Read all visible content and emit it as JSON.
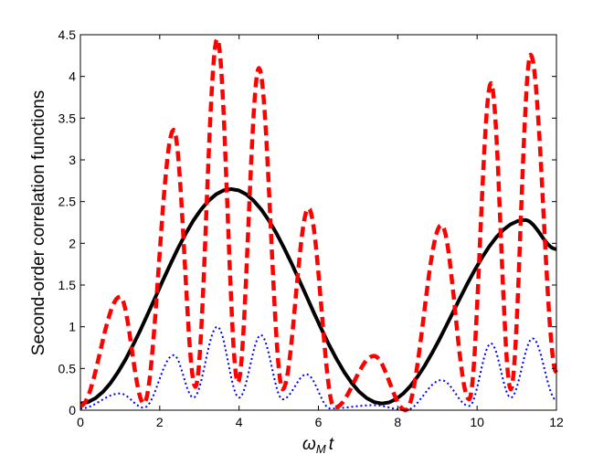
{
  "chart_data": {
    "type": "line",
    "title": "",
    "xlabel": "ω",
    "xlabel_sub": "M",
    "xlabel_var": "t",
    "ylabel": "Second-order correlation functions",
    "xlim": [
      0,
      12
    ],
    "ylim": [
      0,
      4.5
    ],
    "xticks": [
      "0",
      "2",
      "4",
      "6",
      "8",
      "10",
      "12"
    ],
    "yticks": [
      "0",
      "0.5",
      "1",
      "1.5",
      "2",
      "2.5",
      "3",
      "3.5",
      "4",
      "4.5"
    ],
    "grid": false,
    "legend": null,
    "series": [
      {
        "name": "black-solid",
        "color": "#000000",
        "style": "solid",
        "points": [
          [
            0,
            0.08
          ],
          [
            3.8,
            2.65
          ],
          [
            7.6,
            0.08
          ],
          [
            11.2,
            2.28
          ],
          [
            12,
            1.93
          ]
        ]
      },
      {
        "name": "red-dashed",
        "color": "#ff0000",
        "style": "dashed",
        "points": [
          [
            0,
            0.05
          ],
          [
            1.0,
            1.36
          ],
          [
            1.6,
            0.08
          ],
          [
            2.35,
            3.36
          ],
          [
            2.9,
            0.28
          ],
          [
            3.45,
            4.45
          ],
          [
            3.97,
            0.33
          ],
          [
            4.5,
            4.1
          ],
          [
            5.1,
            0.25
          ],
          [
            5.75,
            2.42
          ],
          [
            6.4,
            0.03
          ],
          [
            7.4,
            0.65
          ],
          [
            8.2,
            0.0
          ],
          [
            9.1,
            2.22
          ],
          [
            9.8,
            0.13
          ],
          [
            10.35,
            3.92
          ],
          [
            10.85,
            0.25
          ],
          [
            11.35,
            4.26
          ],
          [
            12,
            0.45
          ]
        ]
      },
      {
        "name": "blue-dotted",
        "color": "#0000ff",
        "style": "dotted",
        "points": [
          [
            0,
            0.02
          ],
          [
            1.0,
            0.2
          ],
          [
            1.6,
            0.03
          ],
          [
            2.35,
            0.66
          ],
          [
            2.85,
            0.15
          ],
          [
            3.45,
            1.0
          ],
          [
            4.0,
            0.15
          ],
          [
            4.55,
            0.9
          ],
          [
            5.1,
            0.13
          ],
          [
            5.7,
            0.43
          ],
          [
            6.3,
            0.02
          ],
          [
            7.4,
            0.06
          ],
          [
            8.2,
            0.0
          ],
          [
            9.1,
            0.36
          ],
          [
            9.8,
            0.05
          ],
          [
            10.35,
            0.8
          ],
          [
            10.85,
            0.15
          ],
          [
            11.4,
            0.86
          ],
          [
            12,
            0.12
          ]
        ]
      }
    ]
  }
}
